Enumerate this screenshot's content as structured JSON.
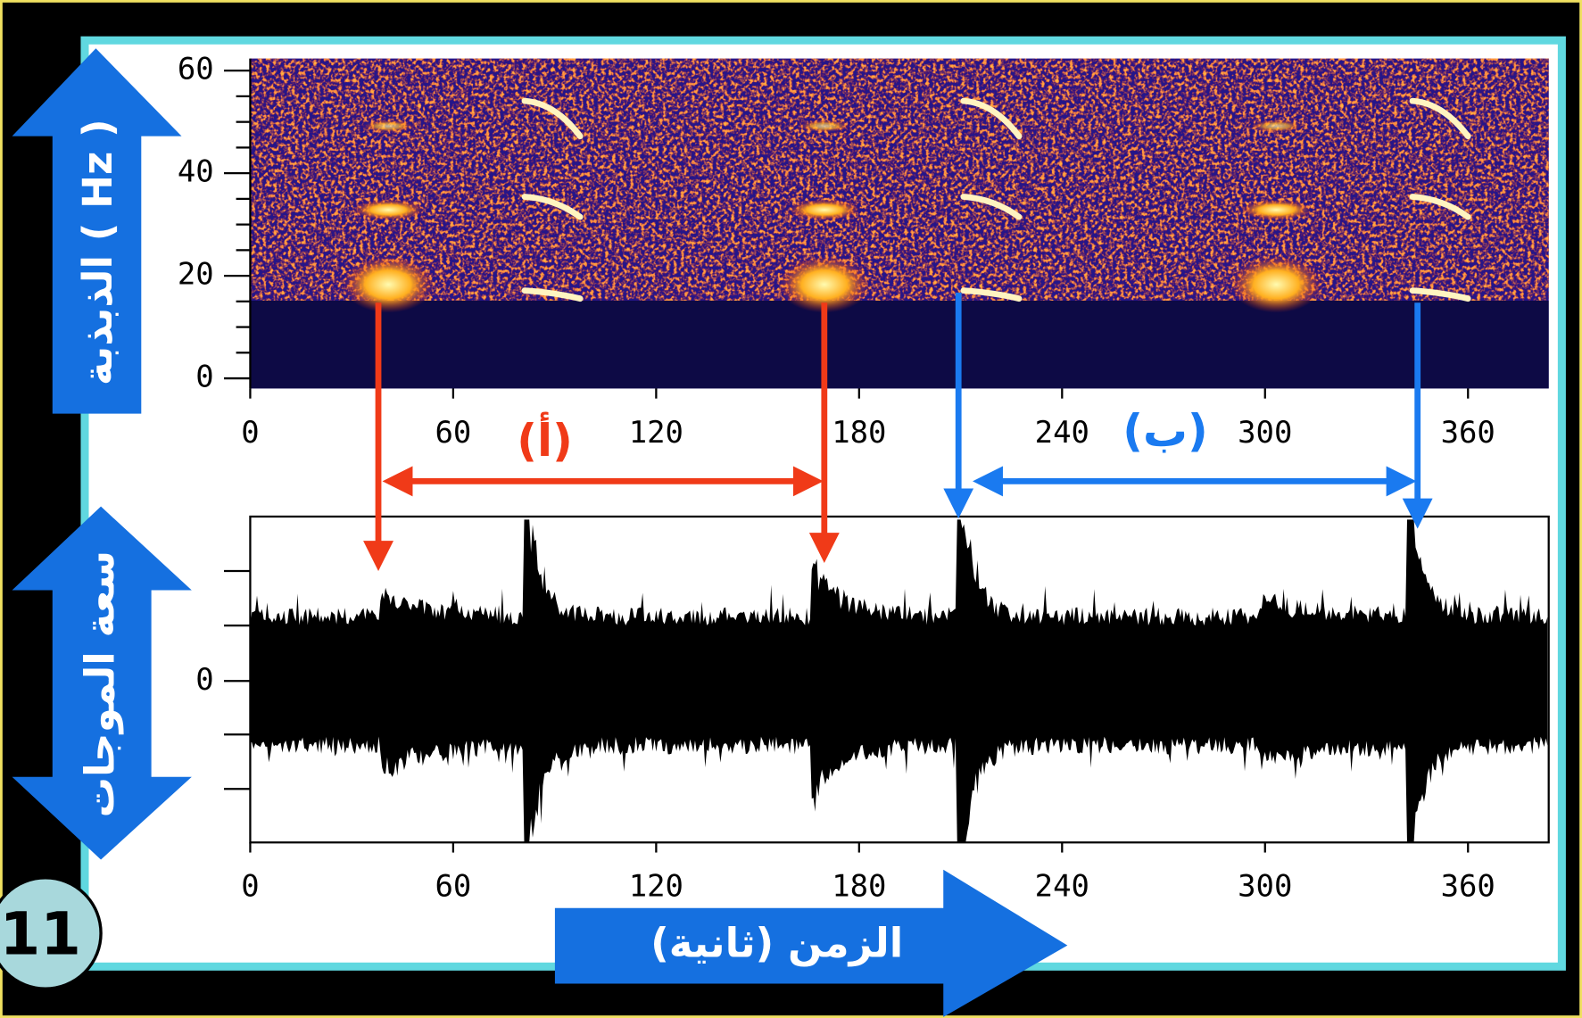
{
  "spectrogram": {
    "y_label": "الذبذبة ( Hz )",
    "yticks": [
      0,
      20,
      40,
      60
    ],
    "xticks": [
      0,
      60,
      120,
      180,
      240,
      300,
      360
    ]
  },
  "waveform": {
    "y_label": "سعة الموجات",
    "yticks": [
      0
    ],
    "xticks": [
      0,
      60,
      120,
      180,
      240,
      300,
      360
    ]
  },
  "x_label": "الزمن (ثانية)",
  "annotations": [
    "(أ)",
    "(ب)"
  ],
  "slide_number": "11"
}
